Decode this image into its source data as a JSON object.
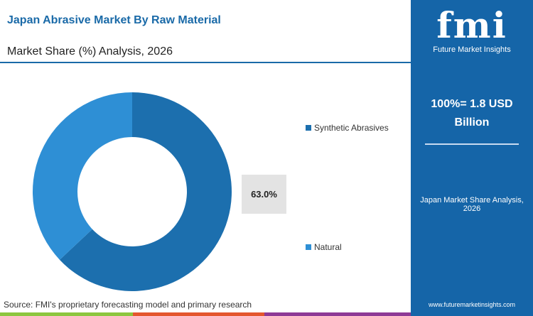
{
  "header": {
    "title": "Japan Abrasive Market By Raw Material",
    "subtitle": "Market Share (%) Analysis, 2026"
  },
  "panel": {
    "logo_text": "fmi",
    "logo_tagline": "Future Market Insights",
    "total_line1": "100%= 1.8 USD",
    "total_line2": "Billion",
    "note": "Japan Market Share Analysis, 2026",
    "url": "www.futuremarketinsights.com"
  },
  "source": "Source: FMI's proprietary forecasting model and primary research",
  "colors": {
    "accent": "#1565a8",
    "green": "#8cc63f",
    "orange": "#e4572e",
    "purple": "#8e3a96"
  },
  "chart_data": {
    "type": "pie",
    "donut": true,
    "categories": [
      "Synthetic Abrasives",
      "Natural"
    ],
    "values": [
      63.0,
      37.0
    ],
    "colors": [
      "#1c6fae",
      "#2e8fd5"
    ],
    "data_labels": [
      "63.0%"
    ],
    "legend_placement": "right"
  }
}
